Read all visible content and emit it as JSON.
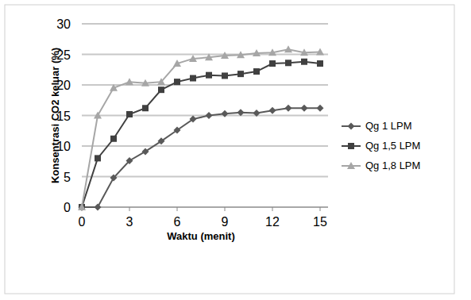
{
  "chart_data": {
    "type": "line",
    "x_label": "Waktu (menit)",
    "y_label": "Konsentrasi CO2 keluar (%)",
    "x": [
      0,
      1,
      2,
      3,
      4,
      5,
      6,
      7,
      8,
      9,
      10,
      11,
      12,
      13,
      14,
      15
    ],
    "series": [
      {
        "name": "Qg 1 LPM",
        "color": "#595959",
        "marker": "diamond",
        "values": [
          0,
          0,
          4.8,
          7.6,
          9.1,
          10.8,
          12.6,
          14.4,
          15,
          15.3,
          15.5,
          15.4,
          15.8,
          16.2,
          16.2,
          16.2
        ]
      },
      {
        "name": "Qg 1,5 LPM",
        "color": "#404040",
        "marker": "square",
        "values": [
          0,
          8,
          11.2,
          15.2,
          16.2,
          19.2,
          20.5,
          21.1,
          21.6,
          21.5,
          21.8,
          22.2,
          23.5,
          23.6,
          23.8,
          23.5
        ]
      },
      {
        "name": "Qg 1,8 LPM",
        "color": "#a6a6a6",
        "marker": "triangle",
        "values": [
          0,
          15,
          19.5,
          20.5,
          20.3,
          20.5,
          23.5,
          24.3,
          24.5,
          24.8,
          24.9,
          25.2,
          25.3,
          25.8,
          25.3,
          25.4
        ]
      }
    ],
    "xlim": [
      0,
      15
    ],
    "xticks": [
      0,
      3,
      6,
      9,
      12,
      15
    ],
    "ylim": [
      0,
      30
    ],
    "yticks": [
      0,
      5,
      10,
      15,
      20,
      25,
      30
    ],
    "grid": true,
    "legend": "right"
  }
}
